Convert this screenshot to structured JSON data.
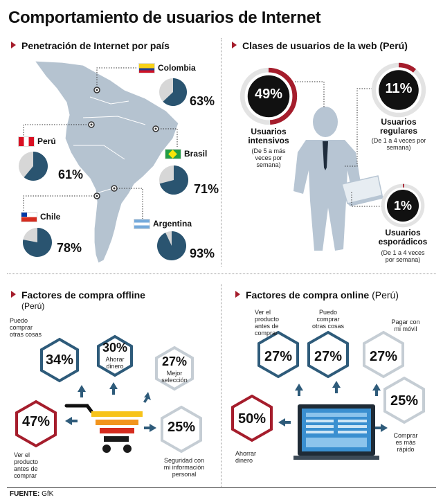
{
  "title": "Comportamiento de usuarios de Internet",
  "colors": {
    "navy": "#2a5470",
    "gray": "#d7d7d7",
    "red": "#a51d2c",
    "hex_blue": "#2e5b7a",
    "hex_gray": "#c5cdd4",
    "silhouette": "#b7c5d3"
  },
  "sections": {
    "penetration": "Penetración de Internet por país",
    "classes": "Clases de usuarios de la web (Perú)",
    "offline_title": "Factores de compra offline",
    "offline_sub": "(Perú)",
    "online_title": "Factores de compra online",
    "online_sub": "(Perú)"
  },
  "countries": [
    {
      "name": "Colombia",
      "pct_label": "63%",
      "value": 63
    },
    {
      "name": "Perú",
      "pct_label": "61%",
      "value": 61
    },
    {
      "name": "Brasil",
      "pct_label": "71%",
      "value": 71
    },
    {
      "name": "Chile",
      "pct_label": "78%",
      "value": 78
    },
    {
      "name": "Argentina",
      "pct_label": "93%",
      "value": 93
    }
  ],
  "users": [
    {
      "pct_label": "49%",
      "value": 49,
      "label_1": "Usuarios",
      "label_2": "intensivos",
      "sub_1": "(De 5 a más",
      "sub_2": "veces por",
      "sub_3": "semana)"
    },
    {
      "pct_label": "11%",
      "value": 11,
      "label_1": "Usuarios",
      "label_2": "regulares",
      "sub_1": "(De 1 a 4 veces por",
      "sub_2": "semana)",
      "sub_3": ""
    },
    {
      "pct_label": "1%",
      "value": 1,
      "label_1": "Usuarios",
      "label_2": "esporádicos",
      "sub_1": "(De 1 a 4 veces",
      "sub_2": "por semana)",
      "sub_3": ""
    }
  ],
  "offline": [
    {
      "pct": "34%",
      "label_1": "Puedo",
      "label_2": "comprar",
      "label_3": "otras cosas"
    },
    {
      "pct": "30%",
      "label_1": "Ahorar",
      "label_2": "dinero",
      "label_3": ""
    },
    {
      "pct": "27%",
      "label_1": "Mejor",
      "label_2": "selección",
      "label_3": ""
    },
    {
      "pct": "47%",
      "label_1": "Ver el",
      "label_2": "producto",
      "label_3": "antes de",
      "label_4": "comprar"
    },
    {
      "pct": "25%",
      "label_1": "Seguridad con",
      "label_2": "mi información",
      "label_3": "personal"
    }
  ],
  "online": [
    {
      "pct": "27%",
      "label_1": "Ver el",
      "label_2": "producto",
      "label_3": "antes de",
      "label_4": "comprar"
    },
    {
      "pct": "27%",
      "label_1": "Puedo",
      "label_2": "comprar",
      "label_3": "otras cosas"
    },
    {
      "pct": "27%",
      "label_1": "Pagar con",
      "label_2": "mi móvil",
      "label_3": ""
    },
    {
      "pct": "25%",
      "label_1": "Comprar",
      "label_2": "es más",
      "label_3": "rápido"
    },
    {
      "pct": "50%",
      "label_1": "Ahorrar",
      "label_2": "dinero",
      "label_3": ""
    }
  ],
  "footer": {
    "label": "FUENTE:",
    "source": "GfK"
  }
}
